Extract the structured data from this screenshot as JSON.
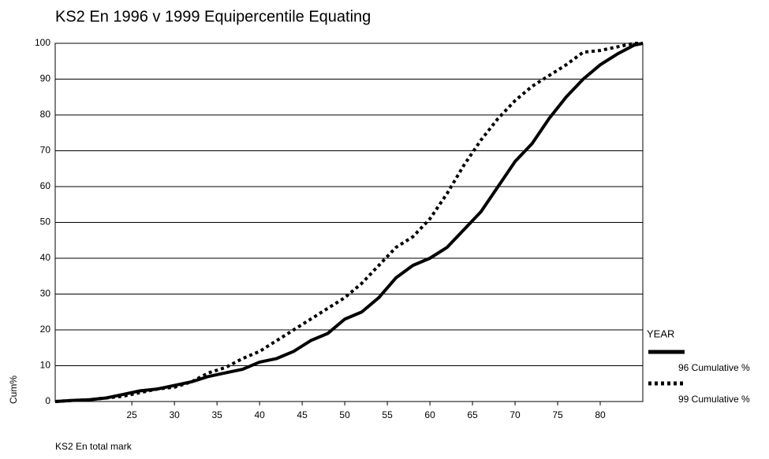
{
  "chart_data": {
    "type": "line",
    "title": "KS2 En 1996 v 1999 Equipercentile Equating",
    "x_label": "KS2 En total mark",
    "y_label": "Cum%",
    "legend_title": "YEAR",
    "x": [
      16,
      18,
      20,
      22,
      24,
      26,
      28,
      30,
      32,
      34,
      36,
      38,
      40,
      42,
      44,
      46,
      48,
      50,
      52,
      54,
      56,
      58,
      60,
      62,
      64,
      66,
      68,
      70,
      72,
      74,
      76,
      78,
      80,
      82,
      84,
      85
    ],
    "series": [
      {
        "name": "96 Cumulative %",
        "color": "#000000",
        "dash": "solid",
        "values": [
          0,
          0.3,
          0.5,
          1,
          2,
          3,
          3.5,
          4.5,
          5.5,
          7,
          8,
          9,
          11,
          12,
          14,
          17,
          19,
          23,
          25,
          29,
          34.5,
          38,
          40,
          43,
          48,
          53,
          60,
          67,
          72,
          79,
          85,
          90,
          94,
          97,
          99.5,
          100
        ]
      },
      {
        "name": "99 Cumulative %",
        "color": "#000000",
        "dash": "dotted",
        "values": [
          0,
          0.3,
          0.5,
          1,
          1.5,
          2.5,
          3.5,
          4,
          5.5,
          8,
          9.5,
          12,
          14,
          17,
          20,
          23,
          26,
          29,
          33,
          38,
          43,
          46,
          51,
          58,
          66,
          73,
          79,
          84,
          88,
          91,
          94,
          97.5,
          98,
          99,
          100,
          100
        ]
      }
    ],
    "xlim": [
      16,
      85
    ],
    "xticks": [
      25,
      30,
      35,
      40,
      45,
      50,
      55,
      60,
      65,
      70,
      75,
      80
    ],
    "ylim": [
      0,
      100
    ],
    "yticks": [
      0,
      10,
      20,
      30,
      40,
      50,
      60,
      70,
      80,
      90,
      100
    ],
    "grid": true
  }
}
